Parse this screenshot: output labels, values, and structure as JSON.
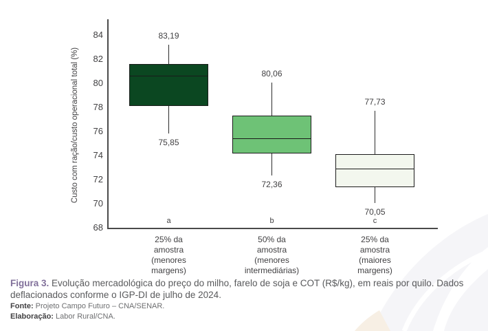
{
  "chart_data": {
    "type": "boxplot",
    "ylabel": "Custo com ração/custo operacional total (%)",
    "ylim": [
      68,
      84
    ],
    "ytick_step": 2,
    "grid": false,
    "legend": "none",
    "groups": [
      {
        "letter": "a",
        "category_lines": [
          "25% da",
          "amostra",
          "(menores",
          "margens)"
        ],
        "whisker_high": 83.19,
        "q3": 81.6,
        "median": 80.6,
        "q1": 78.1,
        "whisker_low": 75.85,
        "high_label": "83,19",
        "low_label": "75,85",
        "fill": "#0b4721"
      },
      {
        "letter": "b",
        "category_lines": [
          "50% da",
          "amostra",
          "(menores",
          "intermediárias)"
        ],
        "whisker_high": 80.06,
        "q3": 77.3,
        "median": 75.4,
        "q1": 74.2,
        "whisker_low": 72.36,
        "high_label": "80,06",
        "low_label": "72,36",
        "fill": "#6ec276"
      },
      {
        "letter": "c",
        "category_lines": [
          "25% da",
          "amostra",
          "(maiores",
          "margens)"
        ],
        "whisker_high": 77.73,
        "q3": 74.1,
        "median": 72.9,
        "q1": 71.4,
        "whisker_low": 70.05,
        "high_label": "77,73",
        "low_label": "70,05",
        "fill": "#f3f7ee"
      }
    ]
  },
  "caption": {
    "figure_label": "Figura 3.",
    "text": "Evolução mercadológica do preço do milho, farelo de soja e COT (R$/kg), em reais por quilo. Dados deflacionados conforme o IGP-DI de julho de 2024.",
    "fonte_label": "Fonte:",
    "fonte_text": "Projeto Campo Futuro – CNA/SENAR.",
    "elaboracao_label": "Elaboração:",
    "elaboracao_text": "Labor Rural/CNA."
  },
  "colors": {
    "box_dark_green": "#0b4721",
    "box_medium_green": "#6ec276",
    "box_light_green": "#f3f7ee",
    "figure_label_purple": "#81709a",
    "caption_gray": "#58595b",
    "chart_text": "#414042"
  }
}
